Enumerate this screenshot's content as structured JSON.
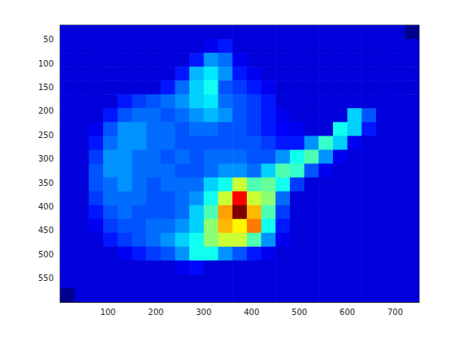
{
  "chart_data": {
    "type": "heatmap",
    "xlim": [
      0,
      750
    ],
    "ylim": [
      600,
      20
    ],
    "xticks": [
      100,
      200,
      300,
      400,
      500,
      600,
      700
    ],
    "yticks": [
      50,
      100,
      150,
      200,
      250,
      300,
      350,
      400,
      450,
      500,
      550
    ],
    "grid": false,
    "cells": [
      [
        0.1,
        0.1,
        0.1,
        0.1,
        0.1,
        0.1,
        0.1,
        0.1,
        0.1,
        0.1,
        0.1,
        0.1,
        0.1,
        0.1,
        0.1,
        0.1,
        0.1,
        0.1,
        0.1,
        0.1,
        0.1,
        0.1,
        0.1,
        0.1,
        0.03
      ],
      [
        0.1,
        0.1,
        0.1,
        0.1,
        0.1,
        0.1,
        0.1,
        0.1,
        0.1,
        0.1,
        0.12,
        0.15,
        0.1,
        0.1,
        0.1,
        0.1,
        0.1,
        0.1,
        0.1,
        0.1,
        0.1,
        0.1,
        0.1,
        0.1,
        0.1
      ],
      [
        0.1,
        0.1,
        0.1,
        0.1,
        0.1,
        0.1,
        0.1,
        0.1,
        0.1,
        0.15,
        0.25,
        0.22,
        0.12,
        0.1,
        0.1,
        0.1,
        0.1,
        0.1,
        0.1,
        0.1,
        0.1,
        0.1,
        0.1,
        0.1,
        0.1
      ],
      [
        0.1,
        0.1,
        0.1,
        0.1,
        0.1,
        0.1,
        0.1,
        0.1,
        0.15,
        0.28,
        0.32,
        0.25,
        0.15,
        0.12,
        0.1,
        0.1,
        0.1,
        0.1,
        0.1,
        0.1,
        0.1,
        0.1,
        0.1,
        0.1,
        0.1
      ],
      [
        0.1,
        0.1,
        0.1,
        0.1,
        0.1,
        0.1,
        0.1,
        0.15,
        0.22,
        0.3,
        0.35,
        0.2,
        0.18,
        0.15,
        0.12,
        0.1,
        0.1,
        0.1,
        0.1,
        0.1,
        0.1,
        0.1,
        0.1,
        0.1,
        0.1
      ],
      [
        0.1,
        0.1,
        0.1,
        0.1,
        0.15,
        0.18,
        0.2,
        0.22,
        0.25,
        0.3,
        0.32,
        0.22,
        0.2,
        0.18,
        0.15,
        0.1,
        0.1,
        0.1,
        0.1,
        0.1,
        0.1,
        0.1,
        0.1,
        0.1,
        0.1
      ],
      [
        0.1,
        0.1,
        0.1,
        0.15,
        0.2,
        0.22,
        0.22,
        0.2,
        0.22,
        0.25,
        0.28,
        0.25,
        0.2,
        0.18,
        0.15,
        0.12,
        0.1,
        0.1,
        0.1,
        0.1,
        0.3,
        0.2,
        0.1,
        0.1,
        0.1
      ],
      [
        0.1,
        0.1,
        0.12,
        0.2,
        0.25,
        0.25,
        0.22,
        0.22,
        0.2,
        0.22,
        0.22,
        0.2,
        0.2,
        0.18,
        0.15,
        0.13,
        0.12,
        0.1,
        0.1,
        0.35,
        0.3,
        0.15,
        0.1,
        0.1,
        0.1
      ],
      [
        0.1,
        0.1,
        0.15,
        0.22,
        0.25,
        0.25,
        0.22,
        0.22,
        0.2,
        0.2,
        0.2,
        0.2,
        0.2,
        0.2,
        0.18,
        0.15,
        0.15,
        0.25,
        0.38,
        0.3,
        0.12,
        0.1,
        0.1,
        0.1,
        0.1
      ],
      [
        0.1,
        0.1,
        0.18,
        0.25,
        0.25,
        0.22,
        0.22,
        0.2,
        0.22,
        0.2,
        0.22,
        0.22,
        0.22,
        0.2,
        0.2,
        0.25,
        0.35,
        0.4,
        0.25,
        0.12,
        0.1,
        0.1,
        0.1,
        0.1,
        0.1
      ],
      [
        0.1,
        0.1,
        0.2,
        0.25,
        0.25,
        0.22,
        0.22,
        0.22,
        0.2,
        0.2,
        0.22,
        0.25,
        0.25,
        0.22,
        0.3,
        0.4,
        0.38,
        0.2,
        0.12,
        0.1,
        0.1,
        0.1,
        0.1,
        0.1,
        0.1
      ],
      [
        0.1,
        0.1,
        0.2,
        0.22,
        0.25,
        0.22,
        0.2,
        0.22,
        0.22,
        0.22,
        0.3,
        0.35,
        0.5,
        0.4,
        0.42,
        0.35,
        0.18,
        0.1,
        0.1,
        0.1,
        0.1,
        0.1,
        0.1,
        0.1,
        0.1
      ],
      [
        0.1,
        0.1,
        0.18,
        0.22,
        0.22,
        0.22,
        0.2,
        0.2,
        0.22,
        0.25,
        0.35,
        0.5,
        0.75,
        0.5,
        0.45,
        0.22,
        0.1,
        0.1,
        0.1,
        0.1,
        0.1,
        0.1,
        0.1,
        0.1,
        0.1
      ],
      [
        0.1,
        0.1,
        0.15,
        0.2,
        0.22,
        0.2,
        0.2,
        0.2,
        0.22,
        0.3,
        0.4,
        0.62,
        0.85,
        0.6,
        0.4,
        0.18,
        0.1,
        0.1,
        0.1,
        0.1,
        0.1,
        0.1,
        0.1,
        0.1,
        0.1
      ],
      [
        0.1,
        0.1,
        0.12,
        0.18,
        0.2,
        0.2,
        0.22,
        0.22,
        0.25,
        0.3,
        0.45,
        0.6,
        0.55,
        0.65,
        0.35,
        0.15,
        0.1,
        0.1,
        0.1,
        0.1,
        0.1,
        0.1,
        0.1,
        0.1,
        0.1
      ],
      [
        0.1,
        0.1,
        0.1,
        0.15,
        0.18,
        0.2,
        0.22,
        0.25,
        0.3,
        0.35,
        0.45,
        0.5,
        0.5,
        0.4,
        0.25,
        0.12,
        0.1,
        0.1,
        0.1,
        0.1,
        0.1,
        0.1,
        0.1,
        0.1,
        0.1
      ],
      [
        0.1,
        0.1,
        0.1,
        0.1,
        0.12,
        0.15,
        0.18,
        0.2,
        0.25,
        0.35,
        0.35,
        0.25,
        0.2,
        0.15,
        0.12,
        0.1,
        0.1,
        0.1,
        0.1,
        0.1,
        0.1,
        0.1,
        0.1,
        0.1,
        0.1
      ],
      [
        0.1,
        0.1,
        0.1,
        0.1,
        0.1,
        0.1,
        0.1,
        0.1,
        0.12,
        0.14,
        0.1,
        0.1,
        0.1,
        0.1,
        0.1,
        0.1,
        0.1,
        0.1,
        0.1,
        0.1,
        0.1,
        0.1,
        0.1,
        0.1,
        0.1
      ],
      [
        0.1,
        0.1,
        0.1,
        0.1,
        0.1,
        0.1,
        0.1,
        0.1,
        0.1,
        0.1,
        0.1,
        0.1,
        0.1,
        0.1,
        0.1,
        0.1,
        0.1,
        0.1,
        0.1,
        0.1,
        0.1,
        0.1,
        0.1,
        0.1,
        0.1
      ],
      [
        0.03,
        0.1,
        0.1,
        0.1,
        0.1,
        0.1,
        0.1,
        0.1,
        0.1,
        0.1,
        0.1,
        0.1,
        0.1,
        0.1,
        0.1,
        0.1,
        0.1,
        0.1,
        0.1,
        0.1,
        0.1,
        0.1,
        0.1,
        0.1,
        0.1
      ]
    ]
  }
}
